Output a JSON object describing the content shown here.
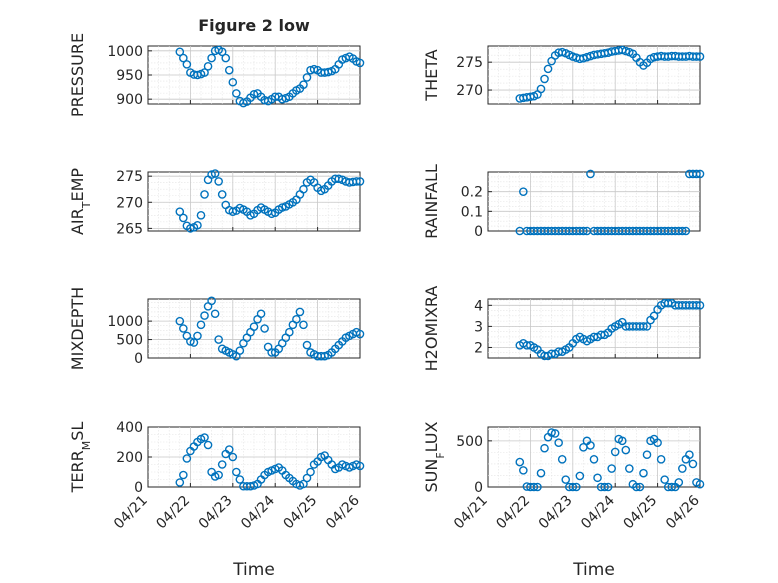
{
  "figure": {
    "title": "Figure 2 low",
    "xlabel": "Time",
    "date_ticks": [
      "04/21",
      "04/22",
      "04/23",
      "04/24",
      "04/25",
      "04/26"
    ],
    "marker_color": "#0072BD"
  },
  "chart_data": [
    {
      "type": "scatter",
      "ylabel": "PRESSURE",
      "xlim": [
        "2021-04-21",
        "2021-04-26"
      ],
      "ylim": [
        890,
        1010
      ],
      "yticks": [
        900,
        950,
        1000
      ],
      "grid": true,
      "x_hours": [
        0,
        2,
        4,
        6,
        8,
        10,
        12,
        14,
        16,
        18,
        20,
        22,
        24,
        26,
        28,
        30,
        32,
        34,
        36,
        38,
        40,
        42,
        44,
        46,
        48,
        50,
        52,
        54,
        56,
        58,
        60,
        62,
        64,
        66,
        68,
        70,
        72,
        74,
        76,
        78,
        80,
        82,
        84,
        86,
        88,
        90,
        92,
        94,
        96,
        98,
        100,
        102
      ],
      "values": [
        998,
        985,
        972,
        955,
        951,
        950,
        952,
        955,
        968,
        985,
        1000,
        1002,
        998,
        985,
        960,
        935,
        912,
        896,
        892,
        895,
        903,
        910,
        912,
        905,
        898,
        896,
        900,
        905,
        905,
        900,
        902,
        905,
        912,
        918,
        922,
        930,
        945,
        960,
        962,
        960,
        955,
        955,
        956,
        958,
        962,
        972,
        982,
        985,
        988,
        984,
        978,
        975
      ]
    },
    {
      "type": "scatter",
      "ylabel": "THETA",
      "xlim": [
        "2021-04-21",
        "2021-04-26"
      ],
      "ylim": [
        267.5,
        277.9
      ],
      "yticks": [
        270,
        275
      ],
      "grid": true,
      "x_hours": [
        0,
        2,
        4,
        6,
        8,
        10,
        12,
        14,
        16,
        18,
        20,
        22,
        24,
        26,
        28,
        30,
        32,
        34,
        36,
        38,
        40,
        42,
        44,
        46,
        48,
        50,
        52,
        54,
        56,
        58,
        60,
        62,
        64,
        66,
        68,
        70,
        72,
        74,
        76,
        78,
        80,
        82,
        84,
        86,
        88,
        90,
        92,
        94,
        96,
        98,
        100,
        102
      ],
      "values": [
        268.5,
        268.6,
        268.7,
        268.8,
        268.9,
        269.2,
        270.2,
        272.0,
        273.8,
        275.2,
        276.2,
        276.7,
        276.8,
        276.6,
        276.3,
        276.0,
        275.8,
        275.6,
        275.7,
        275.9,
        276.1,
        276.3,
        276.4,
        276.5,
        276.6,
        276.7,
        276.9,
        277.0,
        277.1,
        277.2,
        277.0,
        276.8,
        276.5,
        275.8,
        275.0,
        274.4,
        274.9,
        275.6,
        275.9,
        276.0,
        276.1,
        276.0,
        276.0,
        276.1,
        276.1,
        276.0,
        276.0,
        276.0,
        276.1,
        276.0,
        276.0,
        276.0
      ]
    },
    {
      "type": "scatter",
      "ylabel": "AIR_TEMP",
      "xlim": [
        "2021-04-21",
        "2021-04-26"
      ],
      "ylim": [
        264.5,
        275.8
      ],
      "yticks": [
        265,
        270,
        275
      ],
      "grid": true,
      "x_hours": [
        0,
        2,
        4,
        6,
        8,
        10,
        12,
        14,
        16,
        18,
        20,
        22,
        24,
        26,
        28,
        30,
        32,
        34,
        36,
        38,
        40,
        42,
        44,
        46,
        48,
        50,
        52,
        54,
        56,
        58,
        60,
        62,
        64,
        66,
        68,
        70,
        72,
        74,
        76,
        78,
        80,
        82,
        84,
        86,
        88,
        90,
        92,
        94,
        96,
        98,
        100,
        102
      ],
      "values": [
        268.2,
        267.0,
        265.5,
        265.0,
        265.2,
        265.6,
        267.5,
        271.5,
        274.3,
        275.3,
        275.5,
        274.0,
        271.5,
        269.5,
        268.5,
        268.2,
        268.4,
        268.9,
        268.6,
        268.2,
        267.5,
        267.8,
        268.5,
        269.0,
        268.6,
        268.2,
        267.8,
        268.0,
        268.6,
        269.0,
        269.2,
        269.6,
        270.0,
        270.5,
        271.5,
        272.5,
        273.8,
        274.3,
        273.8,
        272.8,
        272.2,
        272.5,
        273.2,
        274.0,
        274.5,
        274.5,
        274.3,
        274.0,
        273.8,
        273.9,
        274.0,
        274.0
      ]
    },
    {
      "type": "scatter",
      "ylabel": "RAINFALL",
      "xlim": [
        "2021-04-21",
        "2021-04-26"
      ],
      "ylim": [
        0,
        0.3
      ],
      "yticks": [
        0,
        0.1,
        0.2
      ],
      "ytick_labels": [
        "0",
        "0.1",
        "0.2"
      ],
      "grid": true,
      "x_hours": [
        0,
        2,
        4,
        6,
        8,
        10,
        12,
        14,
        16,
        18,
        20,
        22,
        24,
        26,
        28,
        30,
        32,
        34,
        36,
        38,
        40,
        42,
        44,
        46,
        48,
        50,
        52,
        54,
        56,
        58,
        60,
        62,
        64,
        66,
        68,
        70,
        72,
        74,
        76,
        78,
        80,
        82,
        84,
        86,
        88,
        90,
        92,
        94,
        96,
        98,
        100,
        102
      ],
      "values": [
        0,
        0.2,
        0,
        0,
        0,
        0,
        0,
        0,
        0,
        0,
        0,
        0,
        0,
        0,
        0,
        0,
        0,
        0,
        0,
        0,
        0.29,
        0,
        0,
        0,
        0,
        0,
        0,
        0,
        0,
        0,
        0,
        0,
        0,
        0,
        0,
        0,
        0,
        0,
        0,
        0,
        0,
        0,
        0,
        0,
        0,
        0,
        0,
        0,
        0.29,
        0.29,
        0.29,
        0.29
      ]
    },
    {
      "type": "scatter",
      "ylabel": "MIXDEPTH",
      "xlim": [
        "2021-04-21",
        "2021-04-26"
      ],
      "ylim": [
        0,
        1600
      ],
      "yticks": [
        0,
        500,
        1000
      ],
      "grid": true,
      "x_hours": [
        0,
        2,
        4,
        6,
        8,
        10,
        12,
        14,
        16,
        18,
        20,
        22,
        24,
        26,
        28,
        30,
        32,
        34,
        36,
        38,
        40,
        42,
        44,
        46,
        48,
        50,
        52,
        54,
        56,
        58,
        60,
        62,
        64,
        66,
        68,
        70,
        72,
        74,
        76,
        78,
        80,
        82,
        84,
        86,
        88,
        90,
        92,
        94,
        96,
        98,
        100,
        102
      ],
      "values": [
        1000,
        800,
        600,
        450,
        420,
        600,
        900,
        1150,
        1400,
        1550,
        1200,
        500,
        250,
        200,
        150,
        100,
        50,
        200,
        400,
        550,
        700,
        850,
        1050,
        1200,
        800,
        300,
        150,
        150,
        250,
        400,
        550,
        700,
        900,
        1050,
        1250,
        900,
        350,
        150,
        100,
        50,
        50,
        50,
        80,
        150,
        250,
        350,
        450,
        550,
        600,
        650,
        700,
        650
      ]
    },
    {
      "type": "scatter",
      "ylabel": "H2OMIXRA",
      "xlim": [
        "2021-04-21",
        "2021-04-26"
      ],
      "ylim": [
        1.5,
        4.3
      ],
      "yticks": [
        2,
        3,
        4
      ],
      "grid": true,
      "x_hours": [
        0,
        2,
        4,
        6,
        8,
        10,
        12,
        14,
        16,
        18,
        20,
        22,
        24,
        26,
        28,
        30,
        32,
        34,
        36,
        38,
        40,
        42,
        44,
        46,
        48,
        50,
        52,
        54,
        56,
        58,
        60,
        62,
        64,
        66,
        68,
        70,
        72,
        74,
        76,
        78,
        80,
        82,
        84,
        86,
        88,
        90,
        92,
        94,
        96,
        98,
        100,
        102
      ],
      "values": [
        2.1,
        2.2,
        2.1,
        2.1,
        2.0,
        1.9,
        1.7,
        1.6,
        1.6,
        1.7,
        1.7,
        1.8,
        1.8,
        1.9,
        2.0,
        2.2,
        2.4,
        2.5,
        2.4,
        2.3,
        2.4,
        2.5,
        2.5,
        2.6,
        2.6,
        2.7,
        2.9,
        3.0,
        3.1,
        3.2,
        3.0,
        3.0,
        3.0,
        3.0,
        3.0,
        3.0,
        3.0,
        3.3,
        3.5,
        3.8,
        4.0,
        4.1,
        4.1,
        4.1,
        4.0,
        4.0,
        4.0,
        4.0,
        4.0,
        4.0,
        4.0,
        4.0
      ]
    },
    {
      "type": "scatter",
      "ylabel": "TERR_MSL",
      "xlim": [
        "2021-04-21",
        "2021-04-26"
      ],
      "ylim": [
        0,
        400
      ],
      "yticks": [
        0,
        200,
        400
      ],
      "grid": true,
      "x_hours": [
        0,
        2,
        4,
        6,
        8,
        10,
        12,
        14,
        16,
        18,
        20,
        22,
        24,
        26,
        28,
        30,
        32,
        34,
        36,
        38,
        40,
        42,
        44,
        46,
        48,
        50,
        52,
        54,
        56,
        58,
        60,
        62,
        64,
        66,
        68,
        70,
        72,
        74,
        76,
        78,
        80,
        82,
        84,
        86,
        88,
        90,
        92,
        94,
        96,
        98,
        100,
        102
      ],
      "values": [
        30,
        80,
        190,
        240,
        270,
        300,
        320,
        330,
        280,
        100,
        70,
        80,
        150,
        220,
        250,
        200,
        100,
        50,
        5,
        5,
        5,
        10,
        20,
        50,
        80,
        100,
        110,
        120,
        130,
        110,
        80,
        60,
        40,
        20,
        10,
        20,
        60,
        100,
        150,
        170,
        200,
        210,
        180,
        150,
        120,
        130,
        150,
        140,
        130,
        140,
        150,
        140
      ]
    },
    {
      "type": "scatter",
      "ylabel": "SUN_FLUX",
      "xlim": [
        "2021-04-21",
        "2021-04-26"
      ],
      "ylim": [
        0,
        650
      ],
      "yticks": [
        0,
        500
      ],
      "grid": true,
      "x_hours": [
        0,
        2,
        4,
        6,
        8,
        10,
        12,
        14,
        16,
        18,
        20,
        22,
        24,
        26,
        28,
        30,
        32,
        34,
        36,
        38,
        40,
        42,
        44,
        46,
        48,
        50,
        52,
        54,
        56,
        58,
        60,
        62,
        64,
        66,
        68,
        70,
        72,
        74,
        76,
        78,
        80,
        82,
        84,
        86,
        88,
        90,
        92,
        94,
        96,
        98,
        100,
        102
      ],
      "values": [
        270,
        180,
        5,
        0,
        0,
        0,
        150,
        420,
        540,
        590,
        580,
        480,
        300,
        80,
        0,
        0,
        0,
        120,
        430,
        500,
        450,
        300,
        100,
        0,
        0,
        0,
        200,
        380,
        520,
        500,
        400,
        200,
        30,
        0,
        0,
        150,
        350,
        500,
        520,
        480,
        300,
        80,
        0,
        0,
        0,
        50,
        200,
        300,
        350,
        250,
        50,
        30
      ]
    }
  ]
}
